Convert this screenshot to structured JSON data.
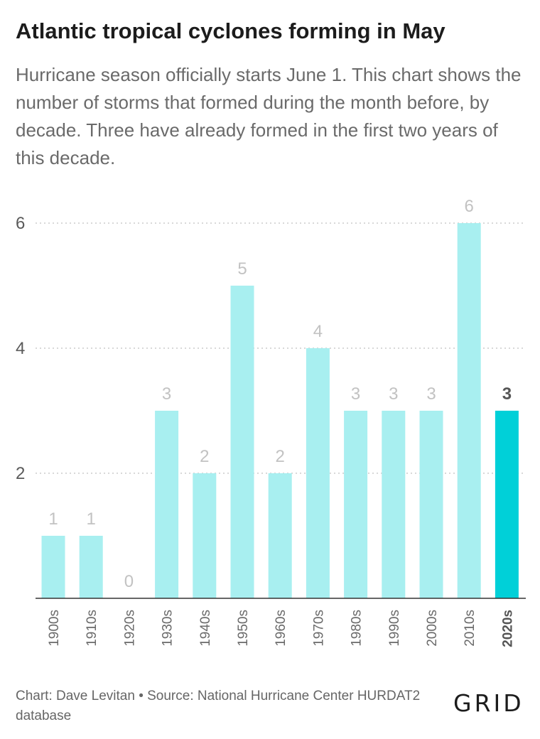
{
  "header": {
    "title": "Atlantic tropical cyclones forming in May",
    "subtitle": "Hurricane season officially starts June 1. This chart shows the number of storms that formed during the month before, by decade. Three have already formed in the first two years of this decade."
  },
  "footer": {
    "source": "Chart: Dave Levitan • Source: National Hurricane Center HURDAT2 database",
    "logo": "GRID"
  },
  "chart_data": {
    "type": "bar",
    "categories": [
      "1900s",
      "1910s",
      "1920s",
      "1930s",
      "1940s",
      "1950s",
      "1960s",
      "1970s",
      "1980s",
      "1990s",
      "2000s",
      "2010s",
      "2020s"
    ],
    "values": [
      1,
      1,
      0,
      3,
      2,
      5,
      2,
      4,
      3,
      3,
      3,
      6,
      3
    ],
    "highlight": "2020s",
    "ylim": [
      0,
      6
    ],
    "yticks": [
      2,
      4,
      6
    ],
    "grid": true,
    "colors": {
      "bar": "#a8eff0",
      "highlight_bar": "#00d0d8",
      "grid": "#cccccc",
      "axis": "#333333"
    },
    "xlabel": "",
    "ylabel": ""
  }
}
